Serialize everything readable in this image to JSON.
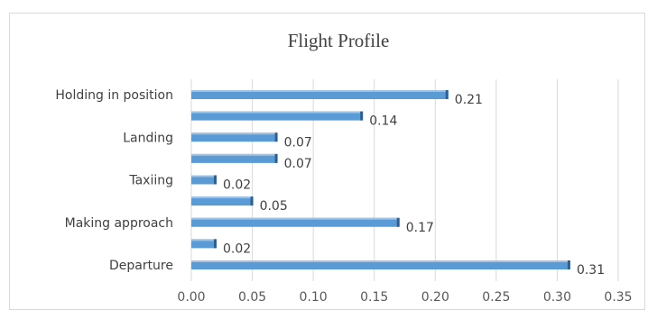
{
  "chart_data": {
    "type": "bar",
    "orientation": "horizontal",
    "title": "Flight Profile",
    "xlabel": "",
    "ylabel": "",
    "xlim": [
      0,
      0.35
    ],
    "x_ticks": [
      "0.00",
      "0.05",
      "0.10",
      "0.15",
      "0.20",
      "0.25",
      "0.30",
      "0.35"
    ],
    "grid": true,
    "legend": "none",
    "bar_color": "#5b9bd5",
    "categories": [
      "Holding in position",
      "",
      "Landing",
      "",
      "Taxiing",
      "",
      "Making approach",
      "",
      "Departure"
    ],
    "values": [
      0.21,
      0.14,
      0.07,
      0.07,
      0.02,
      0.05,
      0.17,
      0.02,
      0.31
    ],
    "data_labels": [
      "0.21",
      "0.14",
      "0.07",
      "0.07",
      "0.02",
      "0.05",
      "0.17",
      "0.02",
      "0.31"
    ]
  }
}
